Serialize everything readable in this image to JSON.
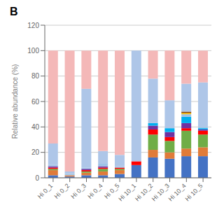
{
  "chart_data": {
    "type": "bar",
    "title": "B",
    "ylabel": "Relative abundance (%)",
    "stacked": true,
    "grid": true,
    "categories": [
      "Hi 0_1",
      "Hi 0_2",
      "Hi 0_3",
      "Hi 0_4",
      "Hi 0_5",
      "Hi 10_1",
      "Hi 10_2",
      "Hi 10_3",
      "Hi 10_4",
      "Hi 10_5"
    ],
    "series": [
      {
        "color": "#4472c4",
        "values": [
          2,
          1,
          2,
          2,
          3,
          10,
          16,
          15,
          17,
          17
        ]
      },
      {
        "color": "#e07b39",
        "values": [
          4,
          1,
          2,
          3,
          3,
          0,
          6,
          5,
          6,
          7
        ]
      },
      {
        "color": "#70ad47",
        "values": [
          1,
          0,
          1,
          2,
          1,
          0,
          12,
          9,
          14,
          10
        ]
      },
      {
        "color": "#ff0000",
        "values": [
          1,
          0,
          1,
          1,
          1,
          3,
          4,
          3,
          2,
          3
        ]
      },
      {
        "color": "#7030a0",
        "values": [
          1,
          0,
          1,
          1,
          0,
          0,
          3,
          4,
          4,
          1
        ]
      },
      {
        "color": "#00b0f0",
        "values": [
          0,
          0,
          0,
          0,
          0,
          0,
          2,
          3,
          5,
          1
        ]
      },
      {
        "color": "#9dc3e6",
        "values": [
          1,
          1,
          1,
          2,
          1,
          0,
          0,
          0,
          2,
          1
        ]
      },
      {
        "color": "#ffc000",
        "values": [
          0,
          0,
          0,
          0,
          0,
          0,
          0,
          0,
          1,
          0
        ]
      },
      {
        "color": "#833c00",
        "values": [
          0,
          0,
          0,
          0,
          0,
          0,
          0,
          0,
          1,
          0
        ]
      },
      {
        "color": "#92d050",
        "values": [
          0,
          0,
          0,
          0,
          0,
          0,
          0,
          0,
          0,
          0
        ]
      },
      {
        "color": "#002060",
        "values": [
          0,
          0,
          0,
          0,
          0,
          0,
          0,
          0,
          0,
          0
        ]
      },
      {
        "color": "#aec6e8",
        "values": [
          17,
          2,
          62,
          10,
          9,
          87,
          35,
          22,
          22,
          35
        ]
      },
      {
        "color": "#f4b8b8",
        "values": [
          73,
          95,
          30,
          79,
          82,
          0,
          22,
          39,
          26,
          25
        ]
      }
    ],
    "ylim": [
      0,
      120
    ],
    "yticks": [
      0,
      20,
      40,
      60,
      80,
      100,
      120
    ]
  }
}
